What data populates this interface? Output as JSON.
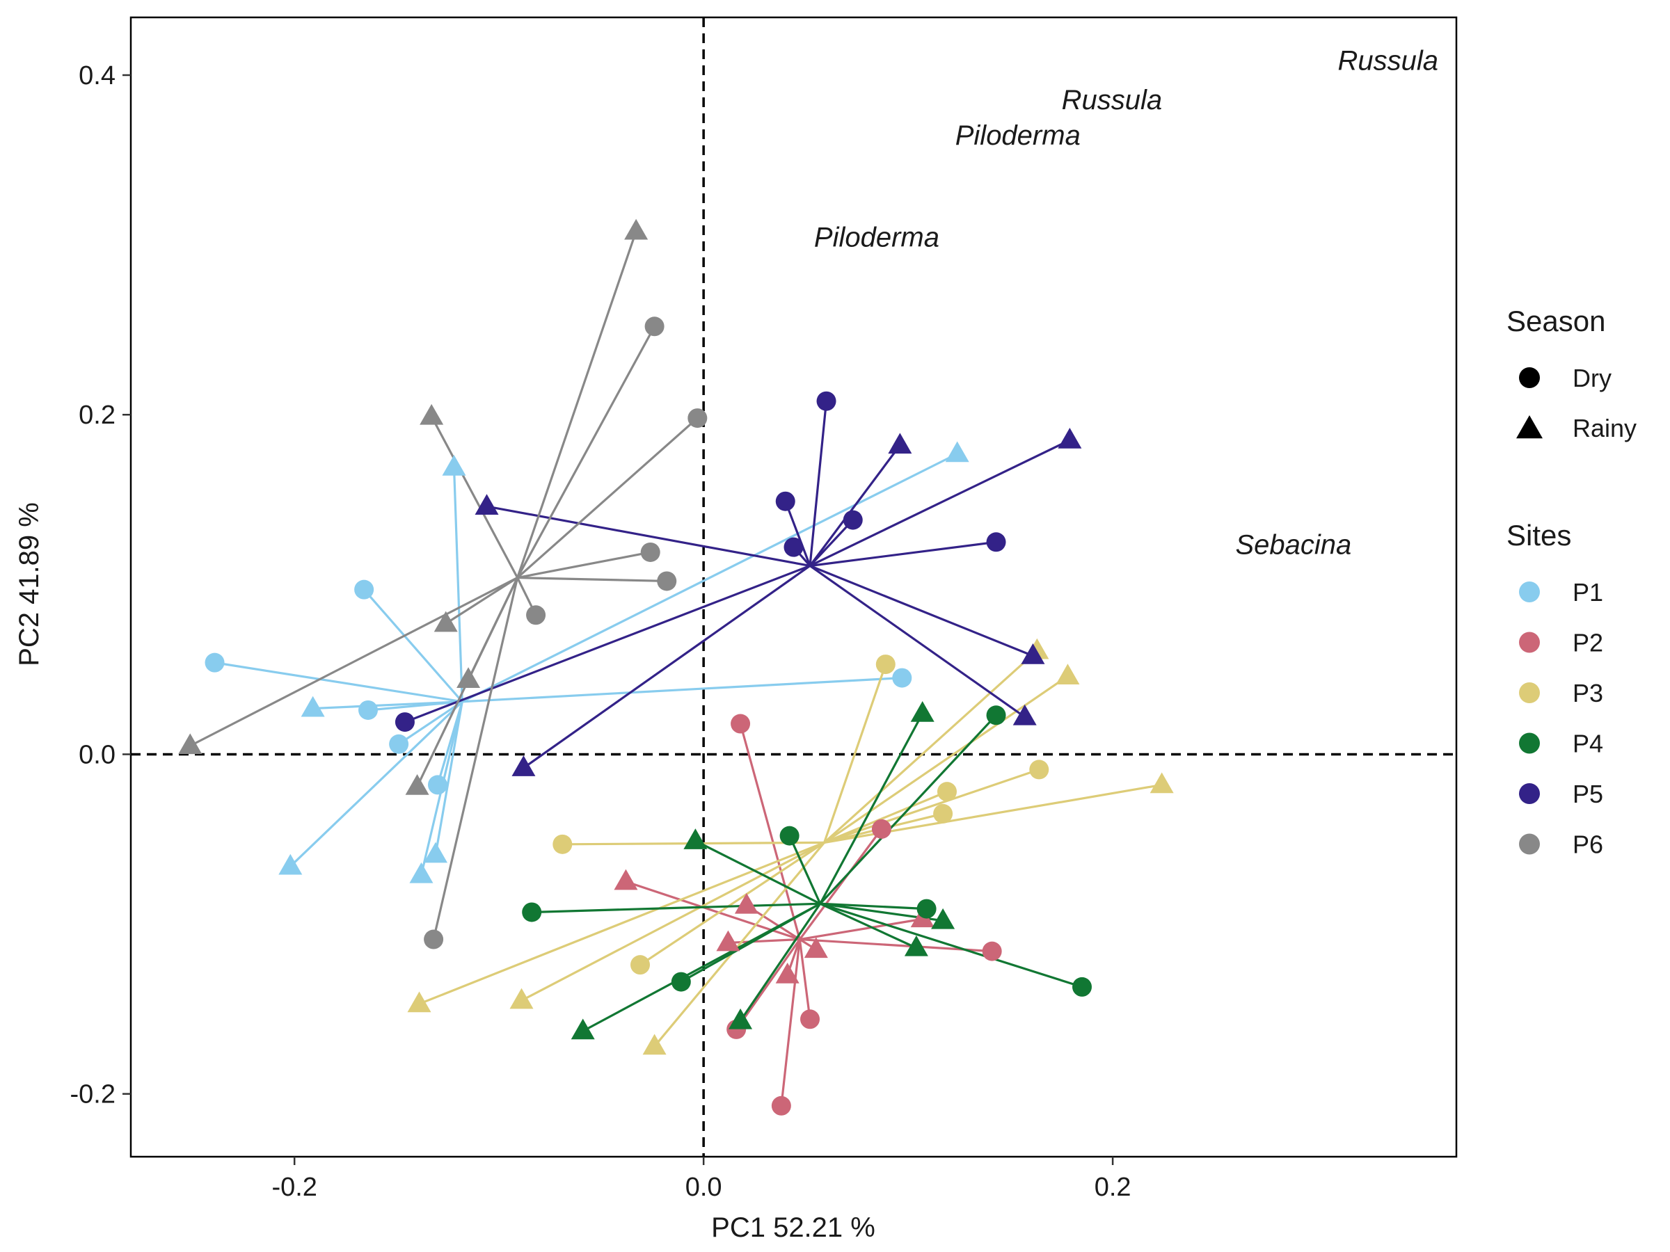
{
  "chart_data": {
    "type": "scatter",
    "xlabel": "PC1 52.21 %",
    "ylabel": "PC2 41.89 %",
    "xlim": [
      -0.28,
      0.368
    ],
    "ylim": [
      -0.237,
      0.434
    ],
    "x_ticks": [
      {
        "value": -0.2,
        "label": "-0.2"
      },
      {
        "value": 0.0,
        "label": "0.0"
      },
      {
        "value": 0.2,
        "label": "0.2"
      }
    ],
    "y_ticks": [
      {
        "value": -0.2,
        "label": "-0.2"
      },
      {
        "value": 0.0,
        "label": "0.0"
      },
      {
        "value": 0.2,
        "label": "0.2"
      },
      {
        "value": 0.4,
        "label": "0.4"
      }
    ],
    "reference_lines": {
      "x": 0,
      "y": 0,
      "style": "dashed"
    },
    "grid": false,
    "legend_position": "right",
    "legend": {
      "season_title": "Season",
      "season": [
        {
          "label": "Dry",
          "shape": "circle"
        },
        {
          "label": "Rainy",
          "shape": "triangle"
        }
      ],
      "sites_title": "Sites",
      "sites": [
        {
          "label": "P1",
          "color": "#88ccee"
        },
        {
          "label": "P2",
          "color": "#cc6677"
        },
        {
          "label": "P3",
          "color": "#ddcc77"
        },
        {
          "label": "P4",
          "color": "#117733"
        },
        {
          "label": "P5",
          "color": "#332288"
        },
        {
          "label": "P6",
          "color": "#888888"
        }
      ]
    },
    "taxa_labels": [
      {
        "text": "Russula",
        "x": 0.31,
        "y": 0.403
      },
      {
        "text": "Russula",
        "x": 0.175,
        "y": 0.38
      },
      {
        "text": "Piloderma",
        "x": 0.123,
        "y": 0.359
      },
      {
        "text": "Piloderma",
        "x": 0.054,
        "y": 0.299
      },
      {
        "text": "Sebacina",
        "x": 0.26,
        "y": 0.118
      }
    ],
    "series": [
      {
        "name": "P1",
        "color": "#88ccee",
        "centroid": [
          -0.118,
          0.031
        ],
        "points": [
          {
            "x": -0.166,
            "y": 0.097,
            "season": "Dry"
          },
          {
            "x": -0.239,
            "y": 0.054,
            "season": "Dry"
          },
          {
            "x": -0.164,
            "y": 0.026,
            "season": "Dry"
          },
          {
            "x": -0.149,
            "y": 0.006,
            "season": "Dry"
          },
          {
            "x": -0.13,
            "y": -0.018,
            "season": "Dry"
          },
          {
            "x": 0.097,
            "y": 0.045,
            "season": "Dry"
          },
          {
            "x": -0.122,
            "y": 0.169,
            "season": "Rainy"
          },
          {
            "x": 0.124,
            "y": 0.177,
            "season": "Rainy"
          },
          {
            "x": -0.191,
            "y": 0.027,
            "season": "Rainy"
          },
          {
            "x": -0.202,
            "y": -0.066,
            "season": "Rainy"
          },
          {
            "x": -0.131,
            "y": -0.059,
            "season": "Rainy"
          },
          {
            "x": -0.138,
            "y": -0.071,
            "season": "Rainy"
          }
        ]
      },
      {
        "name": "P2",
        "color": "#cc6677",
        "centroid": [
          0.047,
          -0.109
        ],
        "points": [
          {
            "x": 0.018,
            "y": 0.018,
            "season": "Dry"
          },
          {
            "x": 0.087,
            "y": -0.044,
            "season": "Dry"
          },
          {
            "x": 0.141,
            "y": -0.116,
            "season": "Dry"
          },
          {
            "x": 0.016,
            "y": -0.162,
            "season": "Dry"
          },
          {
            "x": 0.052,
            "y": -0.156,
            "season": "Dry"
          },
          {
            "x": 0.038,
            "y": -0.207,
            "season": "Dry"
          },
          {
            "x": -0.038,
            "y": -0.075,
            "season": "Rainy"
          },
          {
            "x": 0.021,
            "y": -0.089,
            "season": "Rainy"
          },
          {
            "x": 0.012,
            "y": -0.111,
            "season": "Rainy"
          },
          {
            "x": 0.055,
            "y": -0.115,
            "season": "Rainy"
          },
          {
            "x": 0.041,
            "y": -0.13,
            "season": "Rainy"
          },
          {
            "x": 0.107,
            "y": -0.097,
            "season": "Rainy"
          }
        ]
      },
      {
        "name": "P3",
        "color": "#ddcc77",
        "centroid": [
          0.059,
          -0.052
        ],
        "points": [
          {
            "x": 0.089,
            "y": 0.053,
            "season": "Dry"
          },
          {
            "x": 0.164,
            "y": -0.009,
            "season": "Dry"
          },
          {
            "x": 0.119,
            "y": -0.022,
            "season": "Dry"
          },
          {
            "x": 0.117,
            "y": -0.035,
            "season": "Dry"
          },
          {
            "x": -0.069,
            "y": -0.053,
            "season": "Dry"
          },
          {
            "x": -0.031,
            "y": -0.124,
            "season": "Dry"
          },
          {
            "x": 0.163,
            "y": 0.061,
            "season": "Rainy"
          },
          {
            "x": 0.178,
            "y": 0.046,
            "season": "Rainy"
          },
          {
            "x": 0.224,
            "y": -0.018,
            "season": "Rainy"
          },
          {
            "x": -0.139,
            "y": -0.147,
            "season": "Rainy"
          },
          {
            "x": -0.089,
            "y": -0.145,
            "season": "Rainy"
          },
          {
            "x": -0.024,
            "y": -0.172,
            "season": "Rainy"
          }
        ]
      },
      {
        "name": "P4",
        "color": "#117733",
        "centroid": [
          0.057,
          -0.088
        ],
        "points": [
          {
            "x": 0.143,
            "y": 0.023,
            "season": "Dry"
          },
          {
            "x": 0.042,
            "y": -0.048,
            "season": "Dry"
          },
          {
            "x": 0.109,
            "y": -0.091,
            "season": "Dry"
          },
          {
            "x": 0.185,
            "y": -0.137,
            "season": "Dry"
          },
          {
            "x": -0.084,
            "y": -0.093,
            "season": "Dry"
          },
          {
            "x": -0.011,
            "y": -0.134,
            "season": "Dry"
          },
          {
            "x": 0.107,
            "y": 0.024,
            "season": "Rainy"
          },
          {
            "x": -0.004,
            "y": -0.051,
            "season": "Rainy"
          },
          {
            "x": 0.117,
            "y": -0.098,
            "season": "Rainy"
          },
          {
            "x": 0.104,
            "y": -0.114,
            "season": "Rainy"
          },
          {
            "x": 0.018,
            "y": -0.157,
            "season": "Rainy"
          },
          {
            "x": -0.059,
            "y": -0.163,
            "season": "Rainy"
          }
        ]
      },
      {
        "name": "P5",
        "color": "#332288",
        "centroid": [
          0.052,
          0.111
        ],
        "points": [
          {
            "x": 0.06,
            "y": 0.208,
            "season": "Dry"
          },
          {
            "x": 0.04,
            "y": 0.149,
            "season": "Dry"
          },
          {
            "x": 0.073,
            "y": 0.138,
            "season": "Dry"
          },
          {
            "x": 0.044,
            "y": 0.122,
            "season": "Dry"
          },
          {
            "x": 0.143,
            "y": 0.125,
            "season": "Dry"
          },
          {
            "x": -0.146,
            "y": 0.019,
            "season": "Dry"
          },
          {
            "x": 0.096,
            "y": 0.182,
            "season": "Rainy"
          },
          {
            "x": 0.179,
            "y": 0.185,
            "season": "Rainy"
          },
          {
            "x": -0.106,
            "y": 0.146,
            "season": "Rainy"
          },
          {
            "x": 0.161,
            "y": 0.058,
            "season": "Rainy"
          },
          {
            "x": 0.157,
            "y": 0.022,
            "season": "Rainy"
          },
          {
            "x": -0.088,
            "y": -0.008,
            "season": "Rainy"
          }
        ]
      },
      {
        "name": "P6",
        "color": "#888888",
        "centroid": [
          -0.091,
          0.104
        ],
        "points": [
          {
            "x": -0.024,
            "y": 0.252,
            "season": "Dry"
          },
          {
            "x": -0.003,
            "y": 0.198,
            "season": "Dry"
          },
          {
            "x": -0.026,
            "y": 0.119,
            "season": "Dry"
          },
          {
            "x": -0.018,
            "y": 0.102,
            "season": "Dry"
          },
          {
            "x": -0.082,
            "y": 0.082,
            "season": "Dry"
          },
          {
            "x": -0.132,
            "y": -0.109,
            "season": "Dry"
          },
          {
            "x": -0.033,
            "y": 0.308,
            "season": "Rainy"
          },
          {
            "x": -0.133,
            "y": 0.199,
            "season": "Rainy"
          },
          {
            "x": -0.126,
            "y": 0.077,
            "season": "Rainy"
          },
          {
            "x": -0.115,
            "y": 0.044,
            "season": "Rainy"
          },
          {
            "x": -0.14,
            "y": -0.019,
            "season": "Rainy"
          },
          {
            "x": -0.251,
            "y": 0.005,
            "season": "Rainy"
          }
        ]
      }
    ]
  }
}
